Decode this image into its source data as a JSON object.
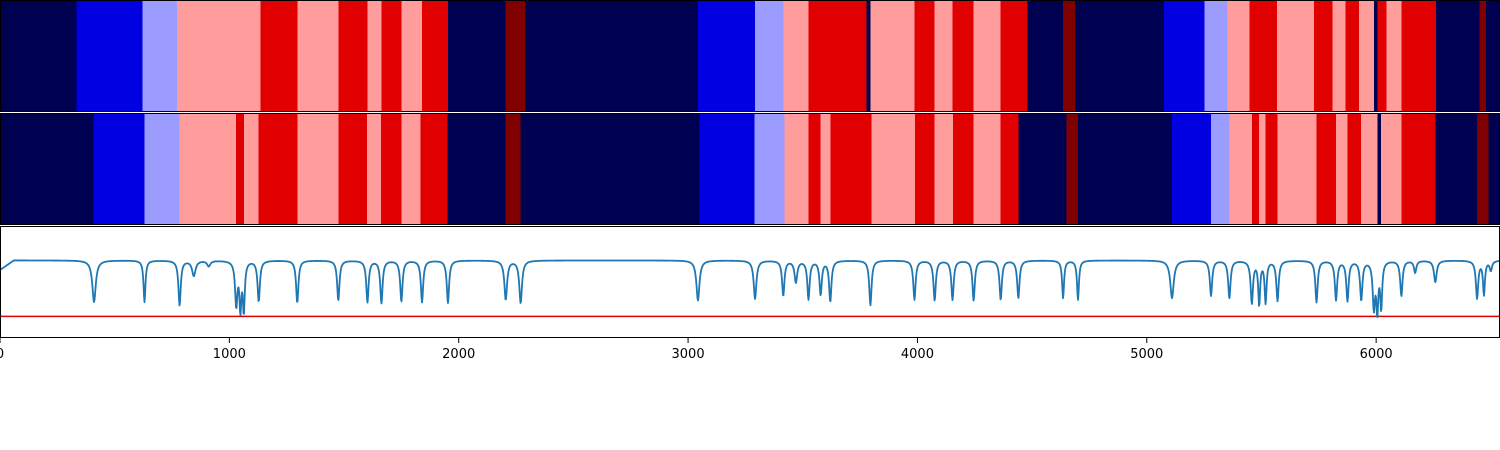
{
  "chart_data": {
    "type": "heatmap",
    "title": "",
    "xlabel": "",
    "ylabel": "",
    "xlim": [
      0,
      6540
    ],
    "grid": false,
    "x_ticks": [
      0,
      1000,
      2000,
      3000,
      4000,
      5000,
      6000
    ],
    "x_tick_labels": [
      "0",
      "1000",
      "2000",
      "3000",
      "4000",
      "5000",
      "6000"
    ],
    "state_colors": [
      "#000050",
      "#0000e0",
      "#9c9cff",
      "#ff9c9c",
      "#e00000",
      "#800000"
    ],
    "segmentation_tracks": [
      {
        "segments": [
          [
            0,
            333,
            0
          ],
          [
            333,
            622,
            1
          ],
          [
            622,
            772,
            2
          ],
          [
            772,
            1136,
            3
          ],
          [
            1136,
            1296,
            4
          ],
          [
            1296,
            1475,
            3
          ],
          [
            1475,
            1602,
            4
          ],
          [
            1602,
            1663,
            3
          ],
          [
            1663,
            1750,
            4
          ],
          [
            1750,
            1840,
            3
          ],
          [
            1840,
            1953,
            4
          ],
          [
            1953,
            2203,
            0
          ],
          [
            2203,
            2290,
            5
          ],
          [
            2290,
            3043,
            0
          ],
          [
            3043,
            3292,
            1
          ],
          [
            3292,
            3415,
            2
          ],
          [
            3415,
            3525,
            3
          ],
          [
            3525,
            3777,
            4
          ],
          [
            3777,
            3795,
            0
          ],
          [
            3795,
            3987,
            3
          ],
          [
            3987,
            4075,
            4
          ],
          [
            4075,
            4153,
            3
          ],
          [
            4153,
            4245,
            4
          ],
          [
            4245,
            4363,
            3
          ],
          [
            4363,
            4480,
            4
          ],
          [
            4480,
            4635,
            0
          ],
          [
            4635,
            4688,
            5
          ],
          [
            4688,
            5075,
            0
          ],
          [
            5075,
            5252,
            1
          ],
          [
            5252,
            5352,
            2
          ],
          [
            5352,
            5448,
            3
          ],
          [
            5448,
            5568,
            4
          ],
          [
            5568,
            5728,
            3
          ],
          [
            5728,
            5810,
            4
          ],
          [
            5810,
            5866,
            3
          ],
          [
            5866,
            5925,
            4
          ],
          [
            5925,
            5990,
            3
          ],
          [
            5990,
            6005,
            0
          ],
          [
            6005,
            6045,
            4
          ],
          [
            6045,
            6110,
            3
          ],
          [
            6110,
            6260,
            4
          ],
          [
            6260,
            6450,
            0
          ],
          [
            6450,
            6480,
            5
          ],
          [
            6480,
            6540,
            0
          ]
        ]
      },
      {
        "segments": [
          [
            0,
            408,
            0
          ],
          [
            408,
            630,
            1
          ],
          [
            630,
            783,
            2
          ],
          [
            783,
            1030,
            3
          ],
          [
            1030,
            1063,
            4
          ],
          [
            1063,
            1126,
            3
          ],
          [
            1126,
            1296,
            4
          ],
          [
            1296,
            1475,
            3
          ],
          [
            1475,
            1600,
            4
          ],
          [
            1600,
            1662,
            3
          ],
          [
            1662,
            1750,
            4
          ],
          [
            1750,
            1834,
            3
          ],
          [
            1834,
            1952,
            4
          ],
          [
            1952,
            2205,
            0
          ],
          [
            2205,
            2270,
            5
          ],
          [
            2270,
            3050,
            0
          ],
          [
            3050,
            3290,
            1
          ],
          [
            3290,
            3420,
            2
          ],
          [
            3420,
            3525,
            3
          ],
          [
            3525,
            3578,
            4
          ],
          [
            3578,
            3620,
            3
          ],
          [
            3620,
            3800,
            4
          ],
          [
            3800,
            3990,
            3
          ],
          [
            3990,
            4075,
            4
          ],
          [
            4075,
            4155,
            3
          ],
          [
            4155,
            4245,
            4
          ],
          [
            4245,
            4363,
            3
          ],
          [
            4363,
            4440,
            4
          ],
          [
            4440,
            4650,
            0
          ],
          [
            4650,
            4700,
            5
          ],
          [
            4700,
            5110,
            0
          ],
          [
            5110,
            5280,
            1
          ],
          [
            5280,
            5360,
            2
          ],
          [
            5360,
            5458,
            3
          ],
          [
            5458,
            5490,
            4
          ],
          [
            5490,
            5518,
            3
          ],
          [
            5518,
            5570,
            4
          ],
          [
            5570,
            5740,
            3
          ],
          [
            5740,
            5825,
            4
          ],
          [
            5825,
            5875,
            3
          ],
          [
            5875,
            5935,
            4
          ],
          [
            5935,
            6005,
            3
          ],
          [
            6005,
            6022,
            0
          ],
          [
            6022,
            6110,
            3
          ],
          [
            6110,
            6258,
            4
          ],
          [
            6258,
            6440,
            0
          ],
          [
            6440,
            6490,
            5
          ],
          [
            6490,
            6540,
            0
          ]
        ]
      }
    ],
    "signal_track": {
      "ylim": [
        0,
        1.4
      ],
      "baseline": 0.97,
      "threshold": 0.27,
      "threshold_color": "#e00000",
      "line_color": "#1f77b4",
      "dips": [
        [
          410,
          0.45,
          9
        ],
        [
          630,
          0.45,
          5
        ],
        [
          783,
          0.41,
          6
        ],
        [
          845,
          0.78,
          9
        ],
        [
          910,
          0.9,
          8
        ],
        [
          1030,
          0.42,
          6
        ],
        [
          1048,
          0.4,
          5
        ],
        [
          1063,
          0.36,
          5
        ],
        [
          1128,
          0.46,
          6
        ],
        [
          1296,
          0.44,
          6
        ],
        [
          1475,
          0.47,
          6
        ],
        [
          1602,
          0.45,
          6
        ],
        [
          1663,
          0.44,
          6
        ],
        [
          1750,
          0.46,
          6
        ],
        [
          1840,
          0.45,
          6
        ],
        [
          1953,
          0.44,
          6
        ],
        [
          2205,
          0.48,
          7
        ],
        [
          2270,
          0.44,
          7
        ],
        [
          3043,
          0.47,
          8
        ],
        [
          3292,
          0.49,
          7
        ],
        [
          3415,
          0.53,
          6
        ],
        [
          3470,
          0.7,
          7
        ],
        [
          3525,
          0.49,
          6
        ],
        [
          3578,
          0.55,
          6
        ],
        [
          3620,
          0.46,
          6
        ],
        [
          3795,
          0.41,
          6
        ],
        [
          3987,
          0.48,
          6
        ],
        [
          4075,
          0.47,
          6
        ],
        [
          4153,
          0.48,
          6
        ],
        [
          4245,
          0.47,
          6
        ],
        [
          4363,
          0.48,
          6
        ],
        [
          4440,
          0.5,
          6
        ],
        [
          4635,
          0.5,
          5
        ],
        [
          4700,
          0.48,
          5
        ],
        [
          5110,
          0.5,
          9
        ],
        [
          5280,
          0.53,
          6
        ],
        [
          5360,
          0.5,
          6
        ],
        [
          5458,
          0.44,
          6
        ],
        [
          5490,
          0.43,
          5
        ],
        [
          5518,
          0.45,
          5
        ],
        [
          5570,
          0.47,
          6
        ],
        [
          5740,
          0.45,
          6
        ],
        [
          5825,
          0.48,
          6
        ],
        [
          5875,
          0.47,
          6
        ],
        [
          5935,
          0.48,
          6
        ],
        [
          5990,
          0.4,
          6
        ],
        [
          6005,
          0.37,
          5
        ],
        [
          6022,
          0.4,
          5
        ],
        [
          6110,
          0.53,
          6
        ],
        [
          6170,
          0.82,
          6
        ],
        [
          6258,
          0.7,
          7
        ],
        [
          6440,
          0.5,
          6
        ],
        [
          6470,
          0.55,
          5
        ],
        [
          6500,
          0.85,
          6
        ]
      ]
    }
  }
}
